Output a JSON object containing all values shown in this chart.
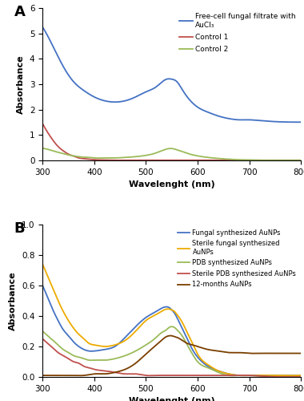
{
  "panel_A": {
    "label": "A",
    "xlabel": "Wavelenght (nm)",
    "ylabel": "Absorbance",
    "xlim": [
      300,
      800
    ],
    "ylim": [
      0,
      6
    ],
    "yticks": [
      0,
      1,
      2,
      3,
      4,
      5,
      6
    ],
    "lines": {
      "blue": {
        "label": "Free-cell fungal filtrate with\nAuCl₃",
        "color": "#4472C4",
        "points": [
          [
            300,
            5.25
          ],
          [
            320,
            4.5
          ],
          [
            340,
            3.7
          ],
          [
            360,
            3.1
          ],
          [
            380,
            2.75
          ],
          [
            400,
            2.5
          ],
          [
            420,
            2.35
          ],
          [
            440,
            2.3
          ],
          [
            460,
            2.35
          ],
          [
            480,
            2.5
          ],
          [
            500,
            2.7
          ],
          [
            520,
            2.9
          ],
          [
            540,
            3.2
          ],
          [
            550,
            3.2
          ],
          [
            560,
            3.1
          ],
          [
            570,
            2.8
          ],
          [
            580,
            2.5
          ],
          [
            600,
            2.1
          ],
          [
            620,
            1.9
          ],
          [
            640,
            1.75
          ],
          [
            660,
            1.65
          ],
          [
            680,
            1.6
          ],
          [
            700,
            1.6
          ],
          [
            720,
            1.57
          ],
          [
            740,
            1.54
          ],
          [
            760,
            1.52
          ],
          [
            780,
            1.51
          ],
          [
            800,
            1.51
          ]
        ]
      },
      "red": {
        "label": "Control 1",
        "color": "#C0504D",
        "points": [
          [
            300,
            1.45
          ],
          [
            310,
            1.1
          ],
          [
            320,
            0.8
          ],
          [
            330,
            0.55
          ],
          [
            340,
            0.38
          ],
          [
            350,
            0.25
          ],
          [
            360,
            0.17
          ],
          [
            370,
            0.1
          ],
          [
            380,
            0.07
          ],
          [
            390,
            0.05
          ],
          [
            400,
            0.03
          ],
          [
            420,
            0.02
          ],
          [
            440,
            0.01
          ],
          [
            460,
            0.01
          ],
          [
            480,
            0.01
          ],
          [
            500,
            0.01
          ],
          [
            520,
            0.01
          ],
          [
            540,
            0.01
          ],
          [
            560,
            0.01
          ],
          [
            600,
            0.01
          ],
          [
            650,
            0.01
          ],
          [
            700,
            0.01
          ],
          [
            750,
            0.01
          ],
          [
            800,
            0.01
          ]
        ]
      },
      "green": {
        "label": "Control 2",
        "color": "#9BBB59",
        "points": [
          [
            300,
            0.48
          ],
          [
            310,
            0.44
          ],
          [
            320,
            0.38
          ],
          [
            330,
            0.32
          ],
          [
            340,
            0.27
          ],
          [
            350,
            0.22
          ],
          [
            360,
            0.18
          ],
          [
            370,
            0.15
          ],
          [
            380,
            0.13
          ],
          [
            390,
            0.12
          ],
          [
            400,
            0.1
          ],
          [
            420,
            0.1
          ],
          [
            440,
            0.1
          ],
          [
            460,
            0.12
          ],
          [
            480,
            0.15
          ],
          [
            500,
            0.2
          ],
          [
            520,
            0.3
          ],
          [
            540,
            0.45
          ],
          [
            550,
            0.47
          ],
          [
            560,
            0.42
          ],
          [
            570,
            0.35
          ],
          [
            580,
            0.28
          ],
          [
            600,
            0.18
          ],
          [
            620,
            0.12
          ],
          [
            640,
            0.08
          ],
          [
            660,
            0.05
          ],
          [
            680,
            0.03
          ],
          [
            700,
            0.02
          ],
          [
            720,
            0.01
          ],
          [
            740,
            0.01
          ],
          [
            760,
            0.01
          ],
          [
            780,
            0.01
          ],
          [
            800,
            0.01
          ]
        ]
      }
    }
  },
  "panel_B": {
    "label": "B",
    "xlabel": "Wavelenght (nm)",
    "ylabel": "Absorbance",
    "xlim": [
      300,
      800
    ],
    "ylim": [
      0,
      1
    ],
    "yticks": [
      0,
      0.2,
      0.4,
      0.6,
      0.8,
      1.0
    ],
    "lines": {
      "blue": {
        "label": "Fungal synthesized AuNPs",
        "color": "#4472C4",
        "points": [
          [
            300,
            0.6
          ],
          [
            310,
            0.52
          ],
          [
            320,
            0.44
          ],
          [
            330,
            0.37
          ],
          [
            340,
            0.31
          ],
          [
            350,
            0.27
          ],
          [
            360,
            0.23
          ],
          [
            370,
            0.2
          ],
          [
            380,
            0.18
          ],
          [
            390,
            0.17
          ],
          [
            400,
            0.17
          ],
          [
            420,
            0.18
          ],
          [
            440,
            0.2
          ],
          [
            460,
            0.26
          ],
          [
            480,
            0.33
          ],
          [
            500,
            0.39
          ],
          [
            520,
            0.43
          ],
          [
            530,
            0.45
          ],
          [
            540,
            0.46
          ],
          [
            545,
            0.455
          ],
          [
            550,
            0.44
          ],
          [
            555,
            0.42
          ],
          [
            560,
            0.39
          ],
          [
            570,
            0.32
          ],
          [
            580,
            0.25
          ],
          [
            590,
            0.18
          ],
          [
            600,
            0.13
          ],
          [
            620,
            0.07
          ],
          [
            640,
            0.04
          ],
          [
            660,
            0.02
          ],
          [
            680,
            0.01
          ],
          [
            700,
            0.01
          ],
          [
            750,
            0.01
          ],
          [
            800,
            0.01
          ]
        ]
      },
      "yellow": {
        "label": "Sterile fungal synthesized\nAuNPs",
        "color": "#EDAB00",
        "points": [
          [
            300,
            0.74
          ],
          [
            310,
            0.66
          ],
          [
            320,
            0.58
          ],
          [
            330,
            0.5
          ],
          [
            340,
            0.43
          ],
          [
            350,
            0.37
          ],
          [
            360,
            0.32
          ],
          [
            370,
            0.28
          ],
          [
            380,
            0.25
          ],
          [
            390,
            0.22
          ],
          [
            400,
            0.21
          ],
          [
            420,
            0.2
          ],
          [
            440,
            0.21
          ],
          [
            460,
            0.24
          ],
          [
            480,
            0.3
          ],
          [
            500,
            0.37
          ],
          [
            520,
            0.41
          ],
          [
            530,
            0.43
          ],
          [
            540,
            0.445
          ],
          [
            545,
            0.445
          ],
          [
            550,
            0.44
          ],
          [
            555,
            0.43
          ],
          [
            560,
            0.41
          ],
          [
            570,
            0.36
          ],
          [
            580,
            0.29
          ],
          [
            590,
            0.22
          ],
          [
            600,
            0.15
          ],
          [
            620,
            0.08
          ],
          [
            640,
            0.04
          ],
          [
            660,
            0.02
          ],
          [
            680,
            0.01
          ],
          [
            700,
            0.01
          ],
          [
            750,
            0.01
          ],
          [
            800,
            0.01
          ]
        ]
      },
      "green": {
        "label": "PDB synthesized AuNPs",
        "color": "#9BBB59",
        "points": [
          [
            300,
            0.3
          ],
          [
            310,
            0.27
          ],
          [
            320,
            0.24
          ],
          [
            330,
            0.21
          ],
          [
            340,
            0.18
          ],
          [
            350,
            0.16
          ],
          [
            360,
            0.14
          ],
          [
            370,
            0.13
          ],
          [
            380,
            0.12
          ],
          [
            390,
            0.11
          ],
          [
            400,
            0.11
          ],
          [
            420,
            0.11
          ],
          [
            440,
            0.12
          ],
          [
            460,
            0.14
          ],
          [
            480,
            0.17
          ],
          [
            500,
            0.21
          ],
          [
            520,
            0.26
          ],
          [
            530,
            0.29
          ],
          [
            540,
            0.31
          ],
          [
            545,
            0.325
          ],
          [
            550,
            0.33
          ],
          [
            555,
            0.325
          ],
          [
            560,
            0.31
          ],
          [
            570,
            0.27
          ],
          [
            580,
            0.21
          ],
          [
            590,
            0.15
          ],
          [
            600,
            0.1
          ],
          [
            620,
            0.06
          ],
          [
            640,
            0.03
          ],
          [
            660,
            0.01
          ],
          [
            680,
            0.01
          ],
          [
            700,
            0.01
          ],
          [
            750,
            0.0
          ],
          [
            800,
            0.0
          ]
        ]
      },
      "red": {
        "label": "Sterile PDB synthesized AuNPs",
        "color": "#C0504D",
        "points": [
          [
            300,
            0.25
          ],
          [
            310,
            0.22
          ],
          [
            320,
            0.19
          ],
          [
            330,
            0.16
          ],
          [
            340,
            0.14
          ],
          [
            350,
            0.12
          ],
          [
            360,
            0.1
          ],
          [
            370,
            0.09
          ],
          [
            380,
            0.07
          ],
          [
            390,
            0.06
          ],
          [
            400,
            0.05
          ],
          [
            420,
            0.04
          ],
          [
            440,
            0.03
          ],
          [
            460,
            0.02
          ],
          [
            480,
            0.02
          ],
          [
            500,
            0.01
          ],
          [
            520,
            0.01
          ],
          [
            540,
            0.01
          ],
          [
            560,
            0.01
          ],
          [
            580,
            0.01
          ],
          [
            600,
            0.01
          ],
          [
            650,
            0.01
          ],
          [
            700,
            0.01
          ],
          [
            750,
            0.0
          ],
          [
            800,
            0.0
          ]
        ]
      },
      "brown": {
        "label": "12-months AuNPs",
        "color": "#7B3F00",
        "points": [
          [
            300,
            0.01
          ],
          [
            310,
            0.01
          ],
          [
            320,
            0.01
          ],
          [
            330,
            0.01
          ],
          [
            340,
            0.01
          ],
          [
            350,
            0.01
          ],
          [
            360,
            0.01
          ],
          [
            380,
            0.01
          ],
          [
            400,
            0.02
          ],
          [
            420,
            0.02
          ],
          [
            440,
            0.03
          ],
          [
            460,
            0.05
          ],
          [
            480,
            0.09
          ],
          [
            500,
            0.15
          ],
          [
            520,
            0.21
          ],
          [
            530,
            0.24
          ],
          [
            540,
            0.265
          ],
          [
            545,
            0.27
          ],
          [
            550,
            0.27
          ],
          [
            555,
            0.265
          ],
          [
            560,
            0.26
          ],
          [
            570,
            0.24
          ],
          [
            580,
            0.22
          ],
          [
            590,
            0.21
          ],
          [
            600,
            0.2
          ],
          [
            620,
            0.18
          ],
          [
            640,
            0.17
          ],
          [
            660,
            0.16
          ],
          [
            680,
            0.16
          ],
          [
            700,
            0.155
          ],
          [
            720,
            0.155
          ],
          [
            740,
            0.155
          ],
          [
            760,
            0.155
          ],
          [
            780,
            0.155
          ],
          [
            800,
            0.155
          ]
        ]
      }
    }
  },
  "figsize": [
    3.8,
    5.0
  ],
  "dpi": 100
}
